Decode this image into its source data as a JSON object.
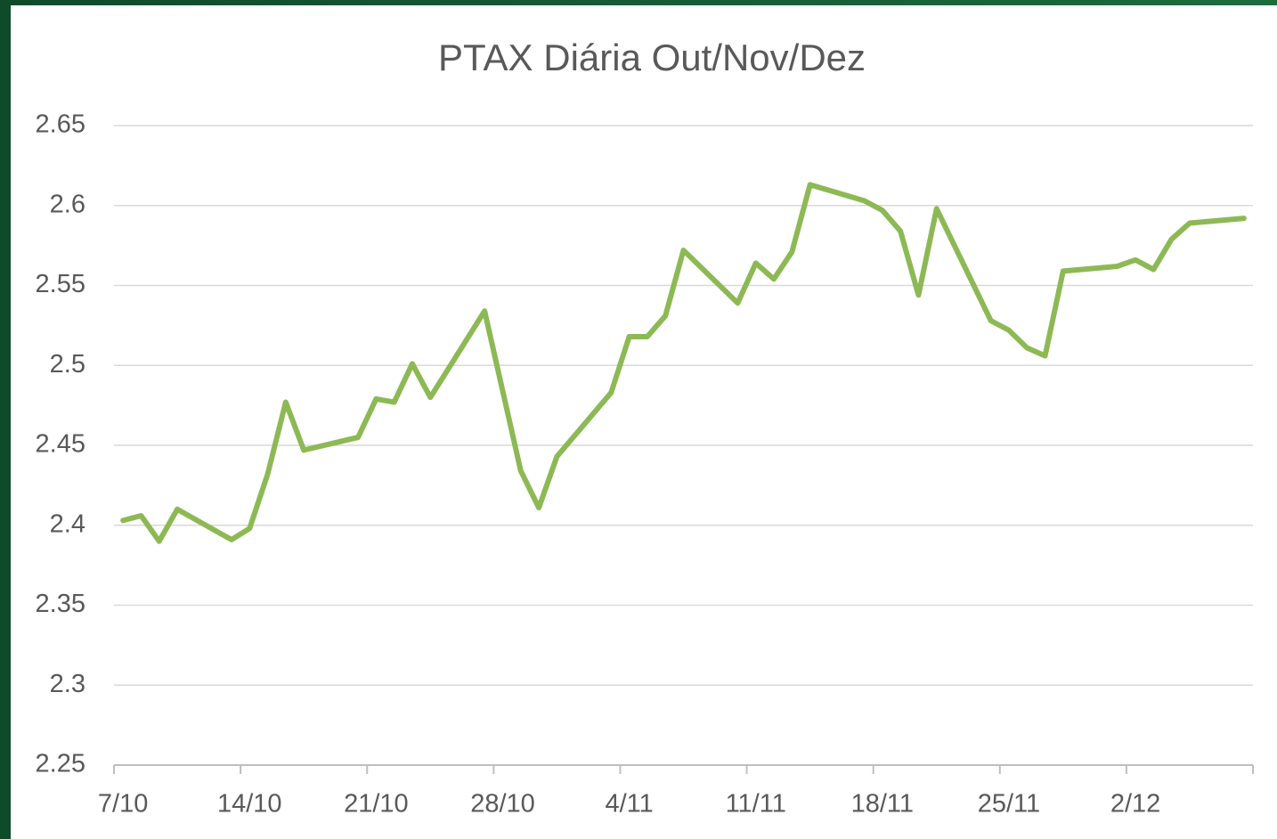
{
  "chart_data": {
    "type": "line",
    "title": "PTAX Diária Out/Nov/Dez",
    "x": [
      "7/10",
      "8/10",
      "9/10",
      "10/10",
      "13/10",
      "14/10",
      "15/10",
      "16/10",
      "17/10",
      "20/10",
      "21/10",
      "22/10",
      "23/10",
      "24/10",
      "27/10",
      "29/10",
      "30/10",
      "31/10",
      "3/11",
      "4/11",
      "5/11",
      "6/11",
      "7/11",
      "10/11",
      "11/11",
      "12/11",
      "13/11",
      "14/11",
      "17/11",
      "18/11",
      "19/11",
      "20/11",
      "21/11",
      "24/11",
      "25/11",
      "26/11",
      "27/11",
      "28/11",
      "1/12",
      "2/12",
      "3/12",
      "4/12",
      "5/12",
      "8/12"
    ],
    "series": [
      {
        "name": "PTAX",
        "color": "#8db955",
        "values": [
          2.403,
          2.406,
          2.39,
          2.41,
          2.391,
          2.398,
          2.432,
          2.477,
          2.447,
          2.455,
          2.479,
          2.477,
          2.501,
          2.48,
          2.534,
          2.434,
          2.411,
          2.443,
          2.483,
          2.518,
          2.518,
          2.531,
          2.572,
          2.539,
          2.564,
          2.554,
          2.571,
          2.613,
          2.603,
          2.597,
          2.584,
          2.544,
          2.598,
          2.528,
          2.522,
          2.511,
          2.506,
          2.559,
          2.562,
          2.566,
          2.56,
          2.579,
          2.589,
          2.592
        ]
      }
    ],
    "xlim": [
      "7/10",
      "9/12"
    ],
    "xticks": [
      "7/10",
      "14/10",
      "21/10",
      "28/10",
      "4/11",
      "11/11",
      "18/11",
      "25/11",
      "2/12"
    ],
    "ylim": [
      2.25,
      2.65
    ],
    "yticks": [
      2.25,
      2.3,
      2.35,
      2.4,
      2.45,
      2.5,
      2.55,
      2.6,
      2.65
    ],
    "grid": true
  }
}
